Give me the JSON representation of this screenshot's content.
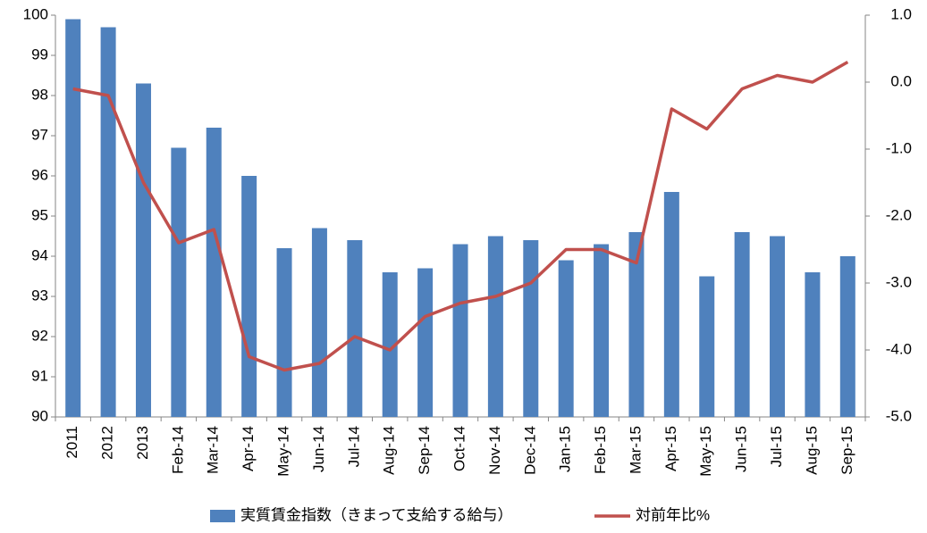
{
  "chart_data": {
    "type": "bar_line",
    "categories": [
      "2011",
      "2012",
      "2013",
      "Feb-14",
      "Mar-14",
      "Apr-14",
      "May-14",
      "Jun-14",
      "Jul-14",
      "Aug-14",
      "Sep-14",
      "Oct-14",
      "Nov-14",
      "Dec-14",
      "Jan-15",
      "Feb-15",
      "Mar-15",
      "Apr-15",
      "May-15",
      "Jun-15",
      "Jul-15",
      "Aug-15",
      "Sep-15"
    ],
    "series": [
      {
        "name": "実質賃金指数（きまって支給する給与）",
        "type": "bar",
        "color": "#4f81bd",
        "axis": "y",
        "values": [
          99.9,
          99.7,
          98.3,
          96.7,
          97.2,
          96.0,
          94.2,
          94.7,
          94.4,
          93.6,
          93.7,
          94.3,
          94.5,
          94.4,
          93.9,
          94.3,
          94.6,
          95.6,
          93.5,
          94.6,
          94.5,
          93.6,
          94.0
        ]
      },
      {
        "name": "対前年比%",
        "type": "line",
        "color": "#c0504d",
        "axis": "y2",
        "values": [
          -0.1,
          -0.2,
          -1.5,
          -2.4,
          -2.2,
          -4.1,
          -4.3,
          -4.2,
          -3.8,
          -4.0,
          -3.5,
          -3.3,
          -3.2,
          -3.0,
          -2.5,
          -2.5,
          -2.7,
          -0.4,
          -0.7,
          -0.1,
          0.1,
          0.0,
          0.3
        ]
      }
    ],
    "ylim": [
      90,
      100
    ],
    "yticks": [
      90,
      91,
      92,
      93,
      94,
      95,
      96,
      97,
      98,
      99,
      100
    ],
    "y2lim": [
      -5,
      1
    ],
    "y2ticks": [
      {
        "value": -5,
        "label": "-5.0"
      },
      {
        "value": -4,
        "label": "-4.0"
      },
      {
        "value": -3,
        "label": "-3.0"
      },
      {
        "value": -2,
        "label": "-2.0"
      },
      {
        "value": -1,
        "label": "-1.0"
      },
      {
        "value": 0,
        "label": "0.0"
      },
      {
        "value": 1,
        "label": "1.0"
      }
    ],
    "grid": false,
    "legend": "bottom"
  }
}
